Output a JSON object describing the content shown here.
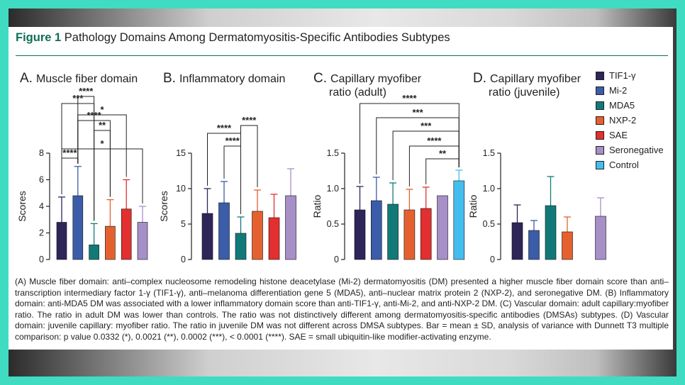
{
  "figure": {
    "label": "Figure 1",
    "title": "Pathology Domains Among Dermatomyositis-Specific Antibodies Subtypes"
  },
  "legend": [
    {
      "name": "TIF1-γ",
      "color": "#2e2559"
    },
    {
      "name": "Mi-2",
      "color": "#3b5ca8"
    },
    {
      "name": "MDA5",
      "color": "#117a78"
    },
    {
      "name": "NXP-2",
      "color": "#e4612f"
    },
    {
      "name": "SAE",
      "color": "#e32f2f"
    },
    {
      "name": "Seronegative",
      "color": "#a78fc8"
    },
    {
      "name": "Control",
      "color": "#45bdec"
    }
  ],
  "chart_data": [
    {
      "type": "bar",
      "panel": "A.",
      "title": "Muscle fiber domain",
      "ylabel": "Scores",
      "ylim": [
        0,
        8
      ],
      "yticks": [
        "0",
        "2",
        "4",
        "6",
        "8"
      ],
      "categories": [
        "TIF1-γ",
        "Mi-2",
        "MDA5",
        "NXP-2",
        "SAE",
        "Seronegative"
      ],
      "values": [
        2.8,
        4.8,
        1.1,
        2.5,
        3.8,
        2.8
      ],
      "sd": [
        1.9,
        2.2,
        1.6,
        2.0,
        2.2,
        1.2
      ],
      "significance": [
        {
          "from": 0,
          "to": 1,
          "label": "****"
        },
        {
          "from": 2,
          "to": 3,
          "label": "**"
        },
        {
          "from": 1,
          "to": 3,
          "label": "****"
        },
        {
          "from": 1,
          "to": 4,
          "label": "*"
        },
        {
          "from": 0,
          "to": 2,
          "label": "***"
        },
        {
          "from": 1,
          "to": 2,
          "label": "****"
        },
        {
          "from": 0,
          "to": 5,
          "label": "*"
        }
      ]
    },
    {
      "type": "bar",
      "panel": "B.",
      "title": "Inflammatory domain",
      "ylabel": "Scores",
      "ylim": [
        0,
        15
      ],
      "yticks": [
        "0",
        "5",
        "10",
        "15"
      ],
      "categories": [
        "TIF1-γ",
        "Mi-2",
        "MDA5",
        "NXP-2",
        "SAE",
        "Seronegative"
      ],
      "values": [
        6.5,
        8.0,
        3.7,
        6.8,
        5.9,
        9.0
      ],
      "sd": [
        3.5,
        3.0,
        2.3,
        3.0,
        3.3,
        3.8
      ],
      "significance": [
        {
          "from": 1,
          "to": 2,
          "label": "****"
        },
        {
          "from": 0,
          "to": 2,
          "label": "****"
        },
        {
          "from": 2,
          "to": 3,
          "label": "****"
        }
      ]
    },
    {
      "type": "bar",
      "panel": "C.",
      "title": "Capillary myofiber ratio (adult)",
      "ylabel": "Ratio",
      "ylim": [
        0,
        1.5
      ],
      "yticks": [
        "0",
        "0.5",
        "1.0",
        "1.5"
      ],
      "categories": [
        "TIF1-γ",
        "Mi-2",
        "MDA5",
        "NXP-2",
        "SAE",
        "Seronegative",
        "Control"
      ],
      "values": [
        0.7,
        0.83,
        0.78,
        0.7,
        0.72,
        0.9,
        1.11
      ],
      "sd": [
        0.33,
        0.33,
        0.3,
        0.29,
        0.3,
        0.0,
        0.15
      ],
      "significance": [
        {
          "from": 4,
          "to": 6,
          "label": "**"
        },
        {
          "from": 3,
          "to": 6,
          "label": "****"
        },
        {
          "from": 2,
          "to": 6,
          "label": "***"
        },
        {
          "from": 1,
          "to": 6,
          "label": "***"
        },
        {
          "from": 0,
          "to": 6,
          "label": "****"
        }
      ]
    },
    {
      "type": "bar",
      "panel": "D.",
      "title": "Capillary myofiber ratio (juvenile)",
      "ylabel": "Ratio",
      "ylim": [
        0,
        1.5
      ],
      "yticks": [
        "0",
        "0.5",
        "1.0",
        "1.5"
      ],
      "categories": [
        "TIF1-γ",
        "Mi-2",
        "MDA5",
        "NXP-2",
        "SAE",
        "Seronegative"
      ],
      "values": [
        0.52,
        0.41,
        0.76,
        0.39,
        null,
        0.61
      ],
      "sd": [
        0.25,
        0.14,
        0.41,
        0.21,
        null,
        0.26
      ],
      "significance": []
    }
  ],
  "caption": [
    "(A) Muscle fiber domain: anti–complex nucleosome remodeling histone deacetylase (Mi-2) dermatomyositis (DM) presented a higher muscle fiber domain score than anti–transcription intermediary factor 1-γ (TIF1-γ), anti–melanoma differentiation gene 5 (MDA5), anti–nuclear matrix protein 2 (NXP-2), and seronegative DM. (B) Inflammatory domain: anti-MDA5 DM was associated with a lower inflammatory domain score than anti-TIF1-γ, anti-Mi-2, and anti-NXP-2 DM. (C) Vascular domain: adult capillary:myofiber ratio. The ratio in adult DM was lower than controls. The ratio was not distinctively different among dermatomyositis-specific antibodies (DMSAs) subtypes. (D) Vascular domain: juvenile capillary: myofiber ratio. The ratio in juvenile DM was not different across DMSA subtypes. Bar = mean ± SD, analysis of variance with Dunnett T3 multiple comparison: p value 0.0332 (*), 0.0021 (**), 0.0002 (***), < 0.0001 (****). SAE = small ubiquitin-like modifier-activating enzyme."
  ]
}
